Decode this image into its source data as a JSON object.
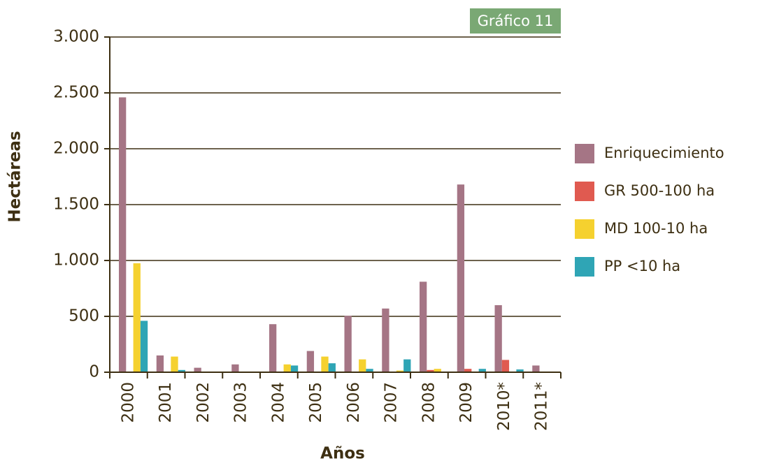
{
  "chart_data": {
    "type": "bar",
    "badge": "Gráfico 11",
    "ylabel": "Hectáreas",
    "xlabel": "Años",
    "categories": [
      "2000",
      "2001",
      "2002",
      "2003",
      "2004",
      "2005",
      "2006",
      "2007",
      "2008",
      "2009",
      "2010*",
      "2011*"
    ],
    "series": [
      {
        "name": "Enriquecimiento",
        "color": "#a57585",
        "values": [
          2460,
          150,
          40,
          70,
          430,
          190,
          505,
          570,
          810,
          1680,
          600,
          60
        ]
      },
      {
        "name": "GR 500-100 ha",
        "color": "#e05a50",
        "values": [
          0,
          0,
          0,
          0,
          0,
          0,
          0,
          0,
          20,
          30,
          110,
          0
        ]
      },
      {
        "name": "MD 100-10 ha",
        "color": "#f5d12f",
        "values": [
          975,
          140,
          0,
          0,
          70,
          140,
          115,
          15,
          30,
          0,
          0,
          0
        ]
      },
      {
        "name": "PP <10 ha",
        "color": "#2fa5b5",
        "values": [
          460,
          20,
          0,
          0,
          60,
          80,
          30,
          115,
          0,
          30,
          25,
          0
        ]
      }
    ],
    "ylim": [
      0,
      3000
    ],
    "yticks": [
      0,
      500,
      {
        "value": 1000,
        "label": "1.000"
      },
      {
        "value": 1500,
        "label": "1.500"
      },
      {
        "value": 2000,
        "label": "2.000"
      },
      {
        "value": 2500,
        "label": "2.500"
      },
      {
        "value": 3000,
        "label": "3.000"
      }
    ],
    "grid": true,
    "legend": "right"
  }
}
